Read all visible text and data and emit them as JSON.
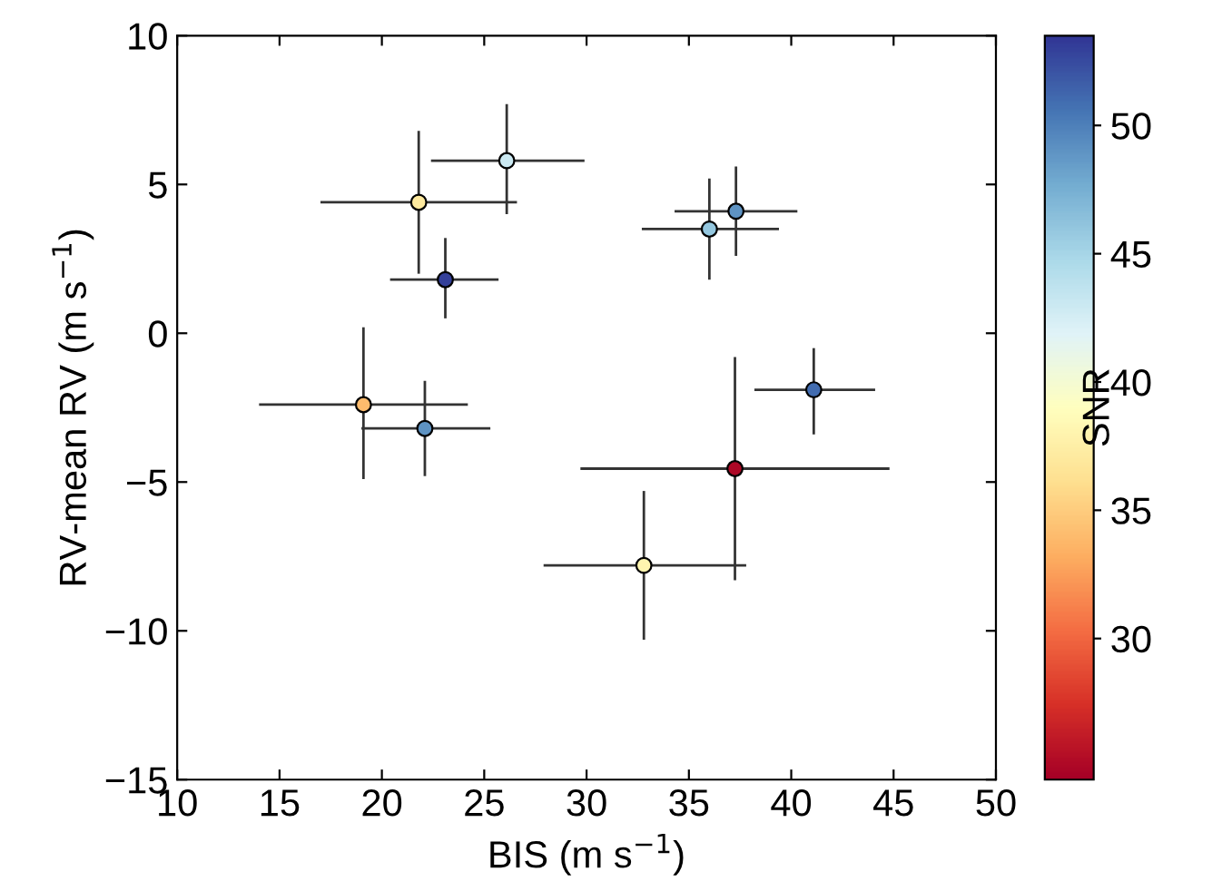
{
  "chart_data": {
    "type": "scatter",
    "xlabel": "BIS (m s$^{−1}$)",
    "ylabel": "RV-mean RV (m s$^{−1}$)",
    "clabel": "SNR",
    "x": [
      21.8,
      26.1,
      23.1,
      36.0,
      37.3,
      19.1,
      22.1,
      37.25,
      32.8,
      41.1
    ],
    "values": [
      4.4,
      5.8,
      1.8,
      3.5,
      4.1,
      -2.4,
      -3.2,
      -4.55,
      -7.8,
      -1.9
    ],
    "xerrors": [
      [
        17.0,
        26.6
      ],
      [
        22.4,
        29.9
      ],
      [
        20.4,
        25.7
      ],
      [
        32.7,
        39.4
      ],
      [
        34.3,
        40.3
      ],
      [
        14.0,
        24.2
      ],
      [
        19.0,
        25.3
      ],
      [
        29.7,
        44.8
      ],
      [
        27.9,
        37.8
      ],
      [
        38.2,
        44.1
      ]
    ],
    "errors": [
      [
        2.0,
        6.8
      ],
      [
        4.0,
        7.7
      ],
      [
        0.5,
        3.2
      ],
      [
        1.8,
        5.2
      ],
      [
        2.6,
        5.6
      ],
      [
        -4.9,
        0.2
      ],
      [
        -4.8,
        -1.6
      ],
      [
        -8.3,
        -0.8
      ],
      [
        -10.3,
        -5.3
      ],
      [
        -3.4,
        -0.5
      ]
    ],
    "cvalues": [
      37,
      43,
      53,
      46,
      49,
      34,
      49,
      25,
      38,
      51
    ],
    "clim": [
      24.5,
      53.5
    ],
    "cticks": [
      30,
      35,
      40,
      45,
      50
    ],
    "xlim": [
      10,
      50
    ],
    "xticks": [
      10,
      15,
      20,
      25,
      30,
      35,
      40,
      45,
      50
    ],
    "ylim": [
      -15,
      10
    ],
    "yticks": [
      {
        "value": -15,
        "label": "−15"
      },
      {
        "value": -10,
        "label": "−10"
      },
      {
        "value": -5,
        "label": "−5"
      },
      0,
      5,
      10
    ],
    "marker": "circle",
    "grid": false,
    "legend": false
  }
}
